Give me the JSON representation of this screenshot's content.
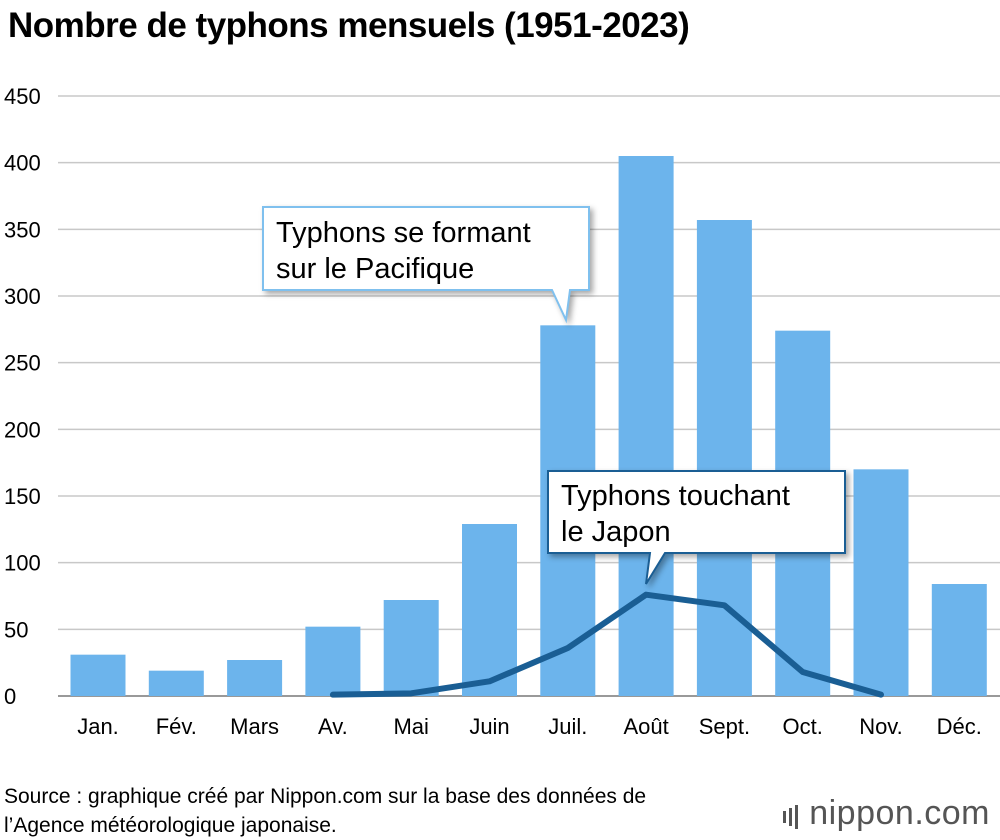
{
  "title": "Nombre de typhons mensuels (1951-2023)",
  "chart_data": {
    "type": "bar",
    "title": "Nombre de typhons mensuels (1951-2023)",
    "categories": [
      "Jan.",
      "Fév.",
      "Mars",
      "Av.",
      "Mai",
      "Juin",
      "Juil.",
      "Août",
      "Sept.",
      "Oct.",
      "Nov.",
      "Déc."
    ],
    "ylim": [
      0,
      450
    ],
    "yticks": [
      0,
      50,
      100,
      150,
      200,
      250,
      300,
      350,
      400,
      450
    ],
    "grid": true,
    "series": [
      {
        "name": "Typhons se formant sur le Pacifique",
        "type": "bar",
        "color": "#6cb4ec",
        "values": [
          31,
          19,
          27,
          52,
          72,
          129,
          278,
          405,
          357,
          274,
          170,
          84
        ]
      },
      {
        "name": "Typhons touchant le Japon",
        "type": "line",
        "color": "#1a5e94",
        "values": [
          null,
          null,
          null,
          1,
          2,
          11,
          36,
          76,
          68,
          18,
          1,
          null
        ]
      }
    ],
    "annotations": [
      {
        "text_line1": "Typhons se formant",
        "text_line2": "sur le Pacifique",
        "target": "Juil."
      },
      {
        "text_line1": "Typhons touchant",
        "text_line2": "le Japon",
        "target": "Août"
      }
    ]
  },
  "footer": {
    "source_line1": "Source : graphique créé par Nippon.com sur la base des données de",
    "source_line2": "l’Agence météorologique japonaise.",
    "logo_main": "nippon",
    "logo_dot": ".",
    "logo_suffix": "com"
  }
}
